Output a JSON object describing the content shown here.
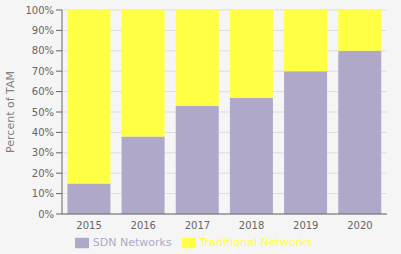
{
  "chart_data": {
    "type": "bar",
    "stacked": true,
    "categories": [
      "2015",
      "2016",
      "2017",
      "2018",
      "2019",
      "2020"
    ],
    "series": [
      {
        "name": "SDN Networks",
        "color": "#B0A8C8",
        "values": [
          15,
          38,
          53,
          57,
          70,
          80
        ]
      },
      {
        "name": "Traditional Networks",
        "color": "#FFFF44",
        "values": [
          85,
          62,
          47,
          43,
          30,
          20
        ]
      }
    ],
    "ylabel": "Percent of TAM",
    "ylim": [
      0,
      100
    ],
    "yticks": [
      {
        "value": 0,
        "label": "0%"
      },
      {
        "value": 10,
        "label": "10%"
      },
      {
        "value": 20,
        "label": "20%"
      },
      {
        "value": 30,
        "label": "30%"
      },
      {
        "value": 40,
        "label": "40%"
      },
      {
        "value": 50,
        "label": "50%"
      },
      {
        "value": 60,
        "label": "60%"
      },
      {
        "value": 70,
        "label": "70%"
      },
      {
        "value": 80,
        "label": "80%"
      },
      {
        "value": 90,
        "label": "90%"
      },
      {
        "value": 100,
        "label": "100%"
      }
    ],
    "grid": true,
    "legend": "bottom"
  }
}
